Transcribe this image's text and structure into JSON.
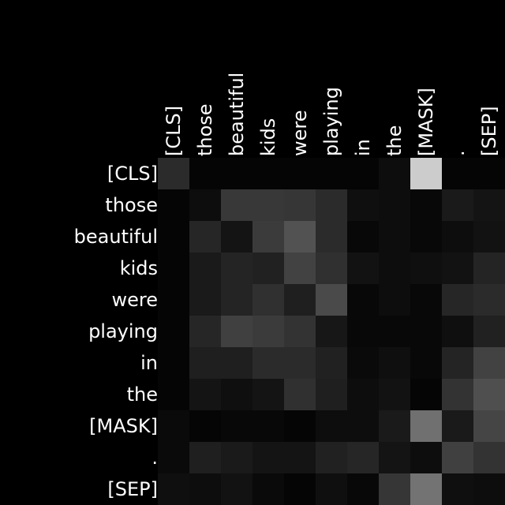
{
  "chart_data": {
    "type": "heatmap",
    "x_tokens": [
      "[CLS]",
      "those",
      "beautiful",
      "kids",
      "were",
      "playing",
      "in",
      "the",
      "[MASK]",
      ".",
      "[SEP]"
    ],
    "y_tokens": [
      "[CLS]",
      "those",
      "beautiful",
      "kids",
      "were",
      "playing",
      "in",
      "the",
      "[MASK]",
      ".",
      "[SEP]"
    ],
    "colormap": "grayscale (black = low, white = high)",
    "value_range": [
      0,
      1
    ],
    "values": [
      [
        0.17,
        0.02,
        0.02,
        0.02,
        0.02,
        0.02,
        0.02,
        0.05,
        0.8,
        0.02,
        0.02
      ],
      [
        0.02,
        0.05,
        0.22,
        0.22,
        0.21,
        0.17,
        0.06,
        0.05,
        0.03,
        0.1,
        0.08
      ],
      [
        0.02,
        0.15,
        0.08,
        0.23,
        0.32,
        0.17,
        0.03,
        0.05,
        0.03,
        0.05,
        0.07
      ],
      [
        0.02,
        0.1,
        0.14,
        0.13,
        0.26,
        0.19,
        0.07,
        0.05,
        0.06,
        0.07,
        0.14
      ],
      [
        0.02,
        0.1,
        0.14,
        0.19,
        0.12,
        0.29,
        0.03,
        0.05,
        0.03,
        0.15,
        0.17
      ],
      [
        0.02,
        0.15,
        0.25,
        0.23,
        0.2,
        0.09,
        0.03,
        0.03,
        0.03,
        0.06,
        0.13
      ],
      [
        0.02,
        0.12,
        0.12,
        0.17,
        0.17,
        0.13,
        0.04,
        0.06,
        0.03,
        0.14,
        0.26
      ],
      [
        0.02,
        0.08,
        0.06,
        0.08,
        0.19,
        0.12,
        0.05,
        0.07,
        0.02,
        0.2,
        0.31
      ],
      [
        0.04,
        0.02,
        0.03,
        0.03,
        0.02,
        0.05,
        0.05,
        0.1,
        0.44,
        0.1,
        0.27
      ],
      [
        0.04,
        0.12,
        0.1,
        0.08,
        0.08,
        0.13,
        0.15,
        0.08,
        0.05,
        0.25,
        0.2
      ],
      [
        0.06,
        0.05,
        0.07,
        0.04,
        0.02,
        0.06,
        0.03,
        0.21,
        0.45,
        0.06,
        0.05
      ]
    ]
  }
}
